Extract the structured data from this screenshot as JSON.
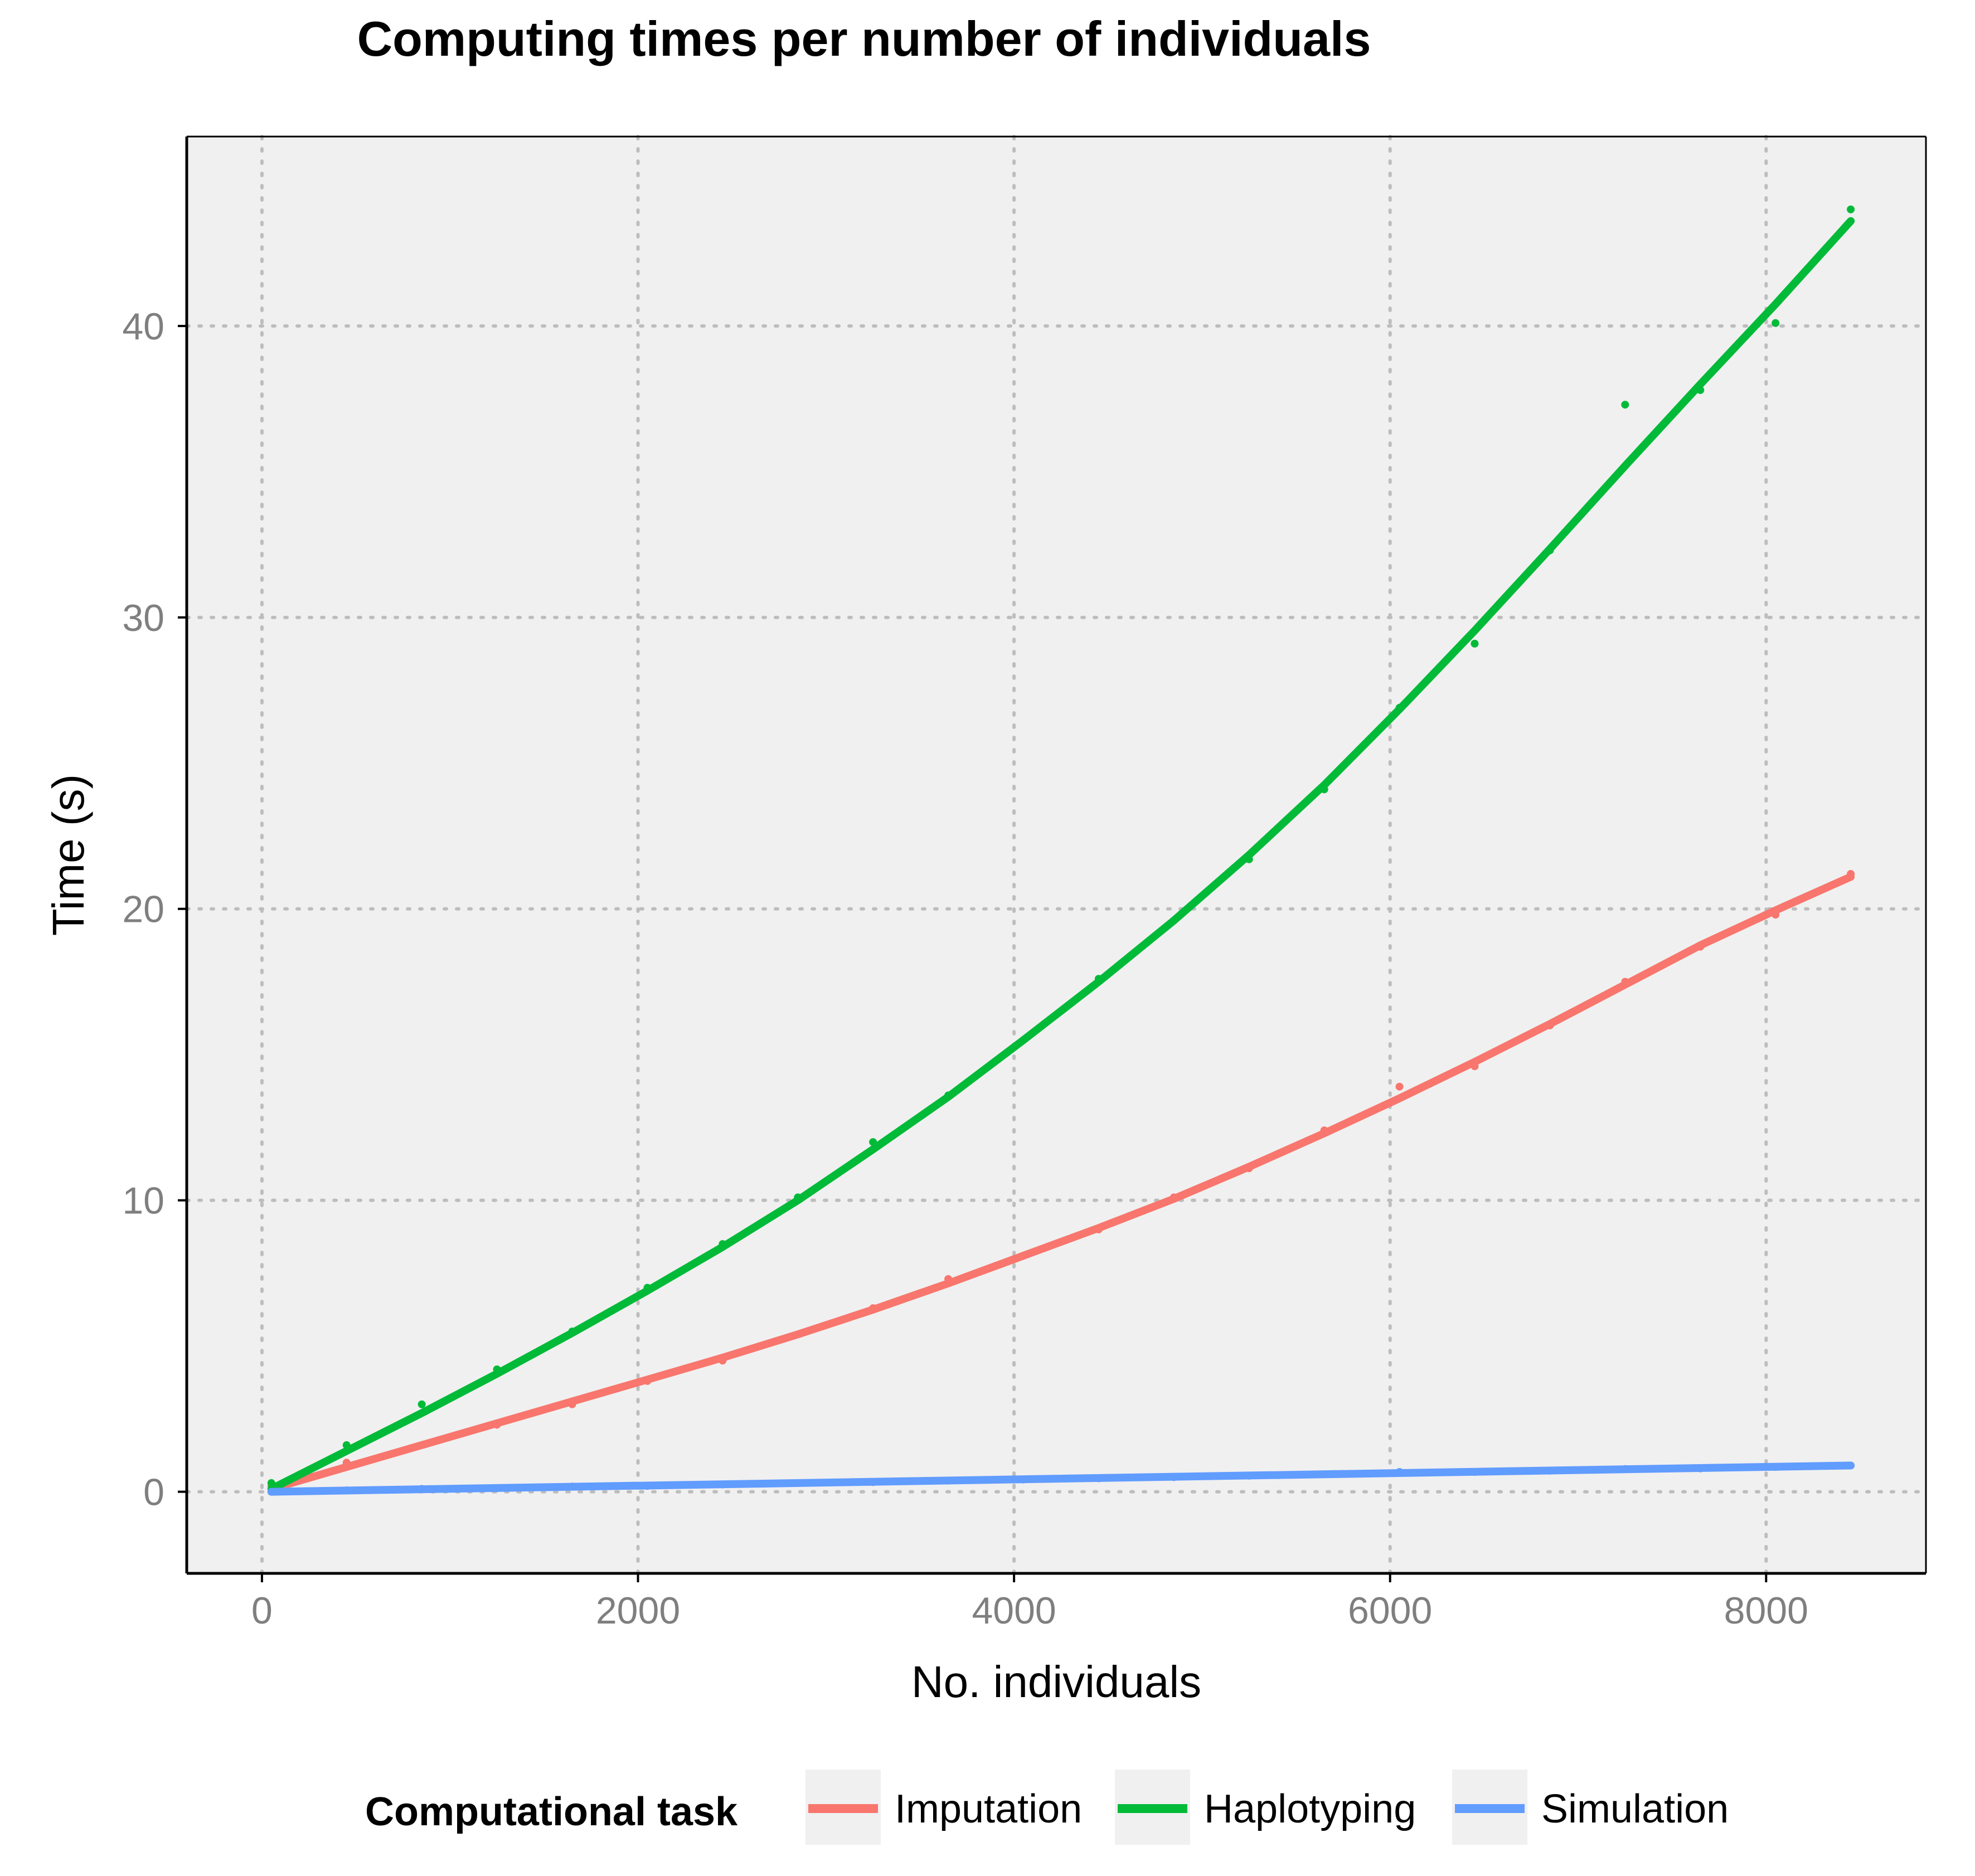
{
  "chart_data": {
    "type": "line",
    "title": "Computing times per number of individuals",
    "xlabel": "No. individuals",
    "ylabel": "Time (s)",
    "xlim": [
      -400,
      8850
    ],
    "ylim": [
      -2.8,
      46.5
    ],
    "x_ticks": [
      0,
      2000,
      4000,
      6000,
      8000
    ],
    "x_tick_labels": [
      "0",
      "2000",
      "4000",
      "6000",
      "8000"
    ],
    "y_ticks": [
      0,
      10,
      20,
      30,
      40
    ],
    "y_tick_labels": [
      "0",
      "10",
      "20",
      "30",
      "40"
    ],
    "grid": true,
    "grid_style": "dotted",
    "legend": {
      "title": "Computational task",
      "position": "bottom"
    },
    "series": [
      {
        "name": "Imputation",
        "color": "#F8766D",
        "points": {
          "x": [
            50,
            450,
            850,
            1250,
            1650,
            2050,
            2450,
            2850,
            3250,
            3650,
            4050,
            4450,
            4850,
            5250,
            5650,
            6050,
            6450,
            6850,
            7250,
            7650,
            8050,
            8450
          ],
          "y": [
            0.2,
            1.0,
            1.6,
            2.3,
            3.0,
            3.8,
            4.5,
            5.4,
            6.3,
            7.3,
            8.1,
            9.0,
            10.1,
            11.1,
            12.4,
            13.9,
            14.6,
            16.0,
            17.5,
            18.7,
            19.8,
            21.2
          ]
        },
        "fit": {
          "x": [
            50,
            450,
            850,
            1250,
            1650,
            2050,
            2450,
            2850,
            3250,
            3650,
            4050,
            4450,
            4850,
            5250,
            5650,
            6050,
            6450,
            6850,
            7250,
            7650,
            8050,
            8450
          ],
          "y": [
            0.1,
            0.85,
            1.6,
            2.35,
            3.1,
            3.85,
            4.6,
            5.4,
            6.25,
            7.15,
            8.1,
            9.05,
            10.05,
            11.15,
            12.3,
            13.5,
            14.75,
            16.05,
            17.4,
            18.75,
            19.95,
            21.1
          ]
        }
      },
      {
        "name": "Haplotyping",
        "color": "#00BA38",
        "points": {
          "x": [
            50,
            450,
            850,
            1250,
            1650,
            2050,
            2450,
            2850,
            3250,
            3650,
            4050,
            4450,
            4850,
            5250,
            5650,
            6050,
            6450,
            6850,
            7250,
            7650,
            8050,
            8450
          ],
          "y": [
            0.3,
            1.6,
            3.0,
            4.2,
            5.5,
            7.0,
            8.5,
            10.1,
            12.0,
            13.6,
            15.5,
            17.6,
            19.6,
            21.7,
            24.1,
            26.9,
            29.1,
            32.3,
            37.3,
            37.8,
            40.1,
            44.0
          ]
        },
        "fit": {
          "x": [
            50,
            450,
            850,
            1250,
            1650,
            2050,
            2450,
            2850,
            3250,
            3650,
            4050,
            4450,
            4850,
            5250,
            5650,
            6050,
            6450,
            6850,
            7250,
            7650,
            8050,
            8450
          ],
          "y": [
            0.1,
            1.4,
            2.7,
            4.05,
            5.45,
            6.9,
            8.4,
            10.0,
            11.75,
            13.55,
            15.5,
            17.5,
            19.6,
            21.85,
            24.25,
            26.85,
            29.55,
            32.35,
            35.2,
            38.0,
            40.75,
            43.6
          ]
        }
      },
      {
        "name": "Simulation",
        "color": "#619CFF",
        "points": {
          "x": [
            50,
            450,
            850,
            1250,
            1650,
            2050,
            2450,
            2850,
            3250,
            3650,
            4050,
            4450,
            4850,
            5250,
            5650,
            6050,
            6450,
            6850,
            7250,
            7650,
            8050,
            8450
          ],
          "y": [
            0.0,
            0.05,
            0.1,
            0.12,
            0.18,
            0.2,
            0.25,
            0.3,
            0.33,
            0.38,
            0.42,
            0.46,
            0.5,
            0.55,
            0.6,
            0.68,
            0.68,
            0.72,
            0.78,
            0.8,
            0.85,
            0.9
          ]
        },
        "fit": {
          "x": [
            50,
            8450
          ],
          "y": [
            0.0,
            0.9
          ]
        }
      }
    ]
  }
}
